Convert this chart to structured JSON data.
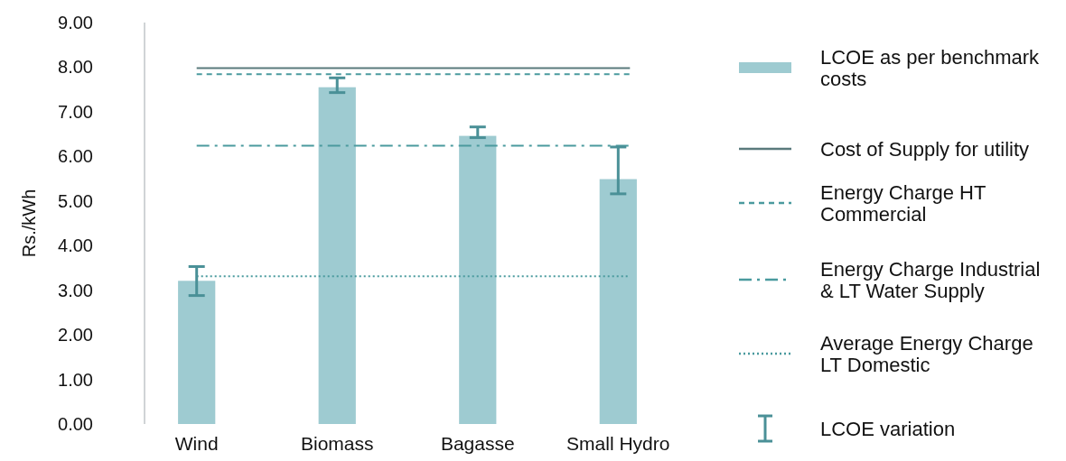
{
  "chart_data": {
    "type": "bar",
    "ylabel": "Rs./kWh",
    "categories": [
      "Wind",
      "Biomass",
      "Bagasse",
      "Small Hydro"
    ],
    "series": [
      {
        "name": "LCOE as per benchmark costs",
        "color": "#9ecbd1",
        "values": [
          3.21,
          7.55,
          6.46,
          5.49
        ],
        "errors": [
          [
            2.88,
            3.53
          ],
          [
            7.43,
            7.76
          ],
          [
            6.42,
            6.66
          ],
          [
            5.16,
            6.21
          ]
        ]
      }
    ],
    "ylim": [
      0,
      9
    ],
    "yticks": [
      {
        "value": 0,
        "label": "0.00"
      },
      {
        "value": 1,
        "label": "1.00"
      },
      {
        "value": 2,
        "label": "2.00"
      },
      {
        "value": 3,
        "label": "3.00"
      },
      {
        "value": 4,
        "label": "4.00"
      },
      {
        "value": 5,
        "label": "5.00"
      },
      {
        "value": 6,
        "label": "6.00"
      },
      {
        "value": 7,
        "label": "7.00"
      },
      {
        "value": 8,
        "label": "8.00"
      },
      {
        "value": 9,
        "label": "9.00"
      }
    ],
    "ref_lines": [
      {
        "axis": "y",
        "value": 7.98,
        "label": "Cost of Supply for utility",
        "color": "#5a7a7c",
        "line_style": "solid"
      },
      {
        "axis": "y",
        "value": 7.84,
        "label": "Energy Charge HT Commercial",
        "color": "#4a9a9e",
        "line_style": "dashed"
      },
      {
        "axis": "y",
        "value": 6.24,
        "label": "Energy Charge Industrial & LT Water Supply",
        "color": "#4a9a9e",
        "line_style": "dashdot"
      },
      {
        "axis": "y",
        "value": 3.31,
        "label": "Average Energy Charge LT Domestic",
        "color": "#4a9a9e",
        "line_style": "dotted"
      }
    ],
    "annotations": [
      "LCOE variation"
    ],
    "grid": false,
    "legend": "right"
  }
}
